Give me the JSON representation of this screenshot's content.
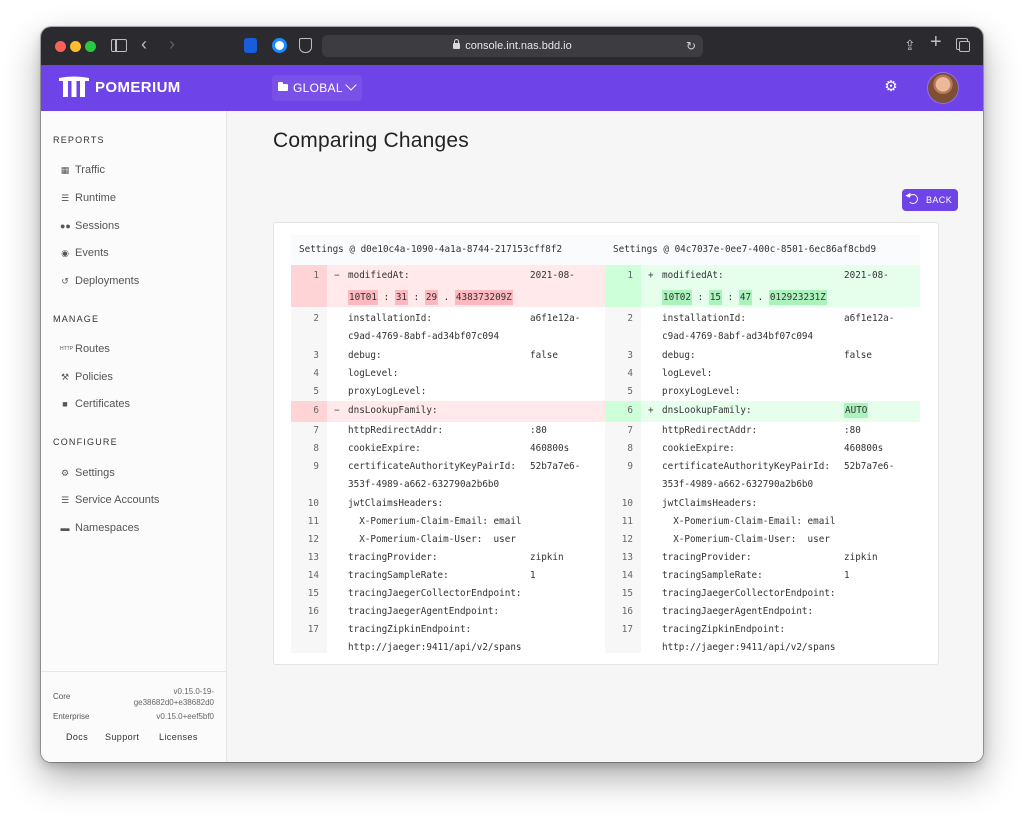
{
  "browser": {
    "url": "console.int.nas.bdd.io"
  },
  "app": {
    "brand": "POMERIUM",
    "namespace": "GLOBAL",
    "accent": "#6e43e8"
  },
  "sidebar": {
    "reports_title": "REPORTS",
    "reports": [
      {
        "label": "Traffic",
        "icon": "chart-icon"
      },
      {
        "label": "Runtime",
        "icon": "server-icon"
      },
      {
        "label": "Sessions",
        "icon": "users-icon"
      },
      {
        "label": "Events",
        "icon": "broadcast-icon"
      },
      {
        "label": "Deployments",
        "icon": "history-icon"
      }
    ],
    "manage_title": "MANAGE",
    "manage": [
      {
        "label": "Routes",
        "icon": "http-icon"
      },
      {
        "label": "Policies",
        "icon": "gavel-icon"
      },
      {
        "label": "Certificates",
        "icon": "lock-icon"
      }
    ],
    "configure_title": "CONFIGURE",
    "configure": [
      {
        "label": "Settings",
        "icon": "gear-icon"
      },
      {
        "label": "Service Accounts",
        "icon": "list-icon"
      },
      {
        "label": "Namespaces",
        "icon": "folder-icon"
      }
    ],
    "versions": {
      "core_label": "Core",
      "core_value_1": "v0.15.0-19-",
      "core_value_2": "ge38682d0+e38682d0",
      "enterprise_label": "Enterprise",
      "enterprise_value": "v0.15.0+eef5bf0"
    },
    "footer": {
      "docs": "Docs",
      "support": "Support",
      "licenses": "Licenses"
    }
  },
  "main": {
    "title": "Comparing Changes",
    "back_label": "BACK"
  },
  "diff": {
    "left_header": "Settings @ d0e10c4a-1090-4a1a-8744-217153cff8f2",
    "right_header": "Settings @ 04c7037e-0ee7-400c-8501-6ec86af8cbd9",
    "left": {
      "modified_val": "2021-08-",
      "modified_parts": [
        "10T01",
        ":",
        "31",
        ":",
        "29",
        ".",
        "438373209Z"
      ],
      "dns_val": ""
    },
    "right": {
      "modified_val": "2021-08-",
      "modified_parts": [
        "10T02",
        ":",
        "15",
        ":",
        "47",
        ".",
        "012923231Z"
      ],
      "dns_val": "AUTO"
    },
    "lines": {
      "n1": "1",
      "n2": "2",
      "n3": "3",
      "n4": "4",
      "n5": "5",
      "n6": "6",
      "n7": "7",
      "n8": "8",
      "n9": "9",
      "n10": "10",
      "n11": "11",
      "n12": "12",
      "n13": "13",
      "n14": "14",
      "n15": "15",
      "n16": "16",
      "n17": "17",
      "minus": "−",
      "plus": "+",
      "k1": "modifiedAt:",
      "k2": "installationId:",
      "v2": "a6f1e12a-",
      "c2": "c9ad-4769-8abf-ad34bf07c094",
      "k3": "debug:",
      "v3": "false",
      "k4": "logLevel:",
      "k5": "proxyLogLevel:",
      "k6": "dnsLookupFamily:",
      "k7": "httpRedirectAddr:",
      "v7": ":80",
      "k8": "cookieExpire:",
      "v8": "460800s",
      "k9": "certificateAuthorityKeyPairId:",
      "v9": "52b7a7e6-",
      "c9": "353f-4989-a662-632790a2b6b0",
      "k10": "jwtClaimsHeaders:",
      "k11": "  X-Pomerium-Claim-Email: email",
      "k12": "  X-Pomerium-Claim-User:  user",
      "k13": "tracingProvider:",
      "v13": "zipkin",
      "k14": "tracingSampleRate:",
      "v14": "1",
      "k15": "tracingJaegerCollectorEndpoint:",
      "k16": "tracingJaegerAgentEndpoint:",
      "k17": "tracingZipkinEndpoint:",
      "c17": "http://jaeger:9411/api/v2/spans"
    }
  }
}
